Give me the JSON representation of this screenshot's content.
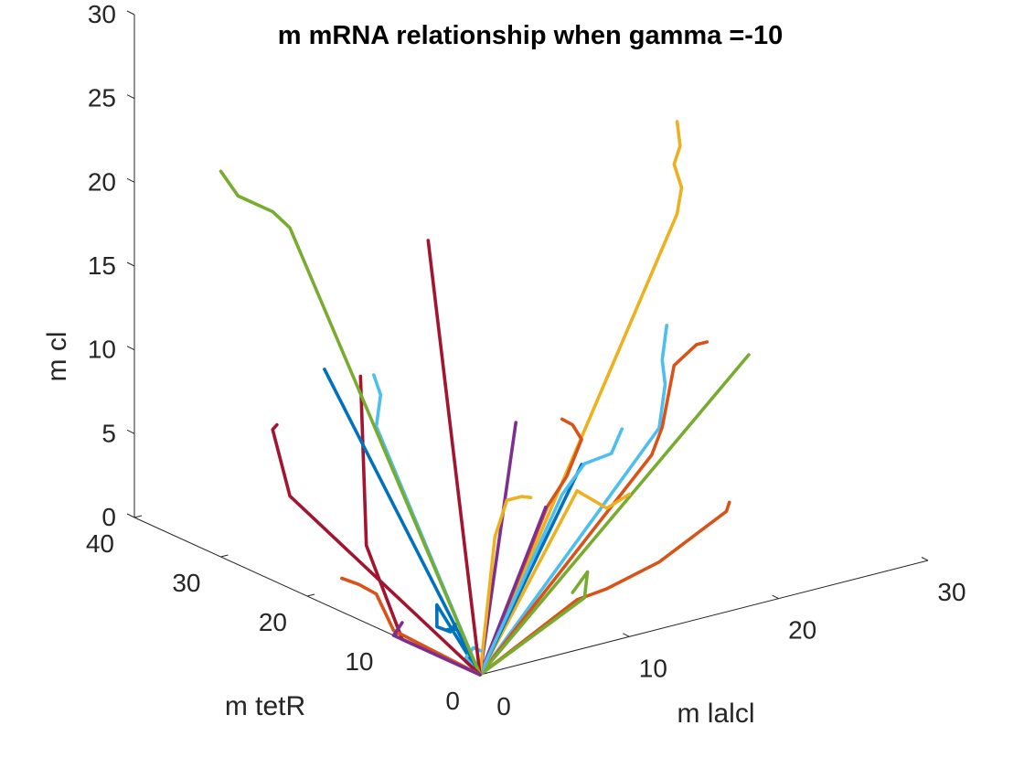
{
  "chart_data": {
    "type": "line",
    "title": "m mRNA relationship when gamma =-10",
    "xlabel": "m lalcl",
    "ylabel": "m tetR",
    "zlabel": "m cl",
    "xlim": [
      0,
      30
    ],
    "ylim": [
      0,
      40
    ],
    "zlim": [
      0,
      30
    ],
    "xticks": [
      "0",
      "10",
      "20",
      "30"
    ],
    "yticks": [
      "0",
      "10",
      "20",
      "30",
      "40"
    ],
    "zticks": [
      "0",
      "5",
      "10",
      "15",
      "20",
      "25",
      "30"
    ],
    "grid": false,
    "colors": [
      "#0072BD",
      "#D95319",
      "#EDB120",
      "#7E2F8E",
      "#77AC30",
      "#4DBEEE",
      "#A2142F"
    ],
    "series": [
      {
        "color": "#EDB120",
        "x": [
          0,
          13.2,
          13.5,
          13.0,
          13.4,
          13.2
        ],
        "y": [
          0,
          0,
          0,
          0,
          0,
          0
        ],
        "z": [
          0,
          24.5,
          26.0,
          27.5,
          28.5,
          30.0
        ]
      },
      {
        "color": "#4DBEEE",
        "x": [
          0,
          12.0,
          12.4,
          12.2,
          12.5
        ],
        "y": [
          0,
          0,
          0,
          0,
          0
        ],
        "z": [
          0,
          12.0,
          14.5,
          16.0,
          18.0
        ]
      },
      {
        "color": "#D95319",
        "x": [
          0,
          11.5,
          12.2,
          13.0,
          14.5,
          15.2
        ],
        "y": [
          0,
          0,
          0,
          0,
          0,
          0
        ],
        "z": [
          0,
          10.5,
          12.0,
          15.5,
          16.4,
          16.4
        ]
      },
      {
        "color": "#77AC30",
        "x": [
          0,
          18.0
        ],
        "y": [
          0,
          0
        ],
        "z": [
          0,
          15.0
        ]
      },
      {
        "color": "#D95319",
        "x": [
          0,
          6.5,
          8.5,
          12.0,
          16.5,
          16.7
        ],
        "y": [
          0,
          0,
          0,
          0,
          0,
          0
        ],
        "z": [
          0,
          3.0,
          3.2,
          4.0,
          6.0,
          6.5
        ]
      },
      {
        "color": "#77AC30",
        "x": [
          0,
          7.0,
          7.2,
          6.2
        ],
        "y": [
          0,
          0,
          0,
          0
        ],
        "z": [
          0,
          3.0,
          4.5,
          3.5
        ]
      },
      {
        "color": "#EDB120",
        "x": [
          0,
          6.5,
          8.5,
          10.0
        ],
        "y": [
          0,
          0,
          0,
          0
        ],
        "z": [
          0,
          9.5,
          8.0,
          8.5
        ]
      },
      {
        "color": "#0072BD",
        "x": [
          0,
          6.8
        ],
        "y": [
          0,
          0
        ],
        "z": [
          0,
          11.0
        ]
      },
      {
        "color": "#D95319",
        "x": [
          0,
          4.5,
          5.8,
          6.8,
          6.2,
          5.5
        ],
        "y": [
          0,
          0,
          0,
          0,
          0,
          0
        ],
        "z": [
          0,
          9.0,
          10.5,
          12.5,
          13.5,
          14.0
        ]
      },
      {
        "color": "#7E2F8E",
        "x": [
          0,
          4.4
        ],
        "y": [
          0,
          0
        ],
        "z": [
          0,
          9.0
        ]
      },
      {
        "color": "#4DBEEE",
        "x": [
          0,
          5.5,
          7.0,
          8.8,
          9.5
        ],
        "y": [
          0,
          0,
          0,
          0,
          0
        ],
        "z": [
          0,
          9.5,
          11.0,
          11.2,
          12.5
        ]
      },
      {
        "color": "#7E2F8E",
        "x": [
          0,
          2.4
        ],
        "y": [
          0,
          0
        ],
        "z": [
          0,
          14.5
        ]
      },
      {
        "color": "#EDB120",
        "x": [
          0,
          1.0,
          1.8,
          2.8,
          3.4
        ],
        "y": [
          0,
          0,
          0,
          0,
          0
        ],
        "z": [
          0,
          8.0,
          10.0,
          10.0,
          9.8
        ]
      },
      {
        "color": "#0072BD",
        "x": [
          0,
          0,
          0.3,
          1.2,
          1.8,
          2.0,
          1.3
        ],
        "y": [
          0,
          5.0,
          5.5,
          5.5,
          6.0,
          6.2,
          6.0
        ],
        "z": [
          0,
          3.0,
          1.5,
          1.0,
          1.2,
          0.8,
          1.0
        ]
      },
      {
        "color": "#4DBEEE",
        "x": [
          0,
          0.5,
          1.0,
          1.5
        ],
        "y": [
          0,
          2.5,
          2.5,
          2.5
        ],
        "z": [
          0,
          0.3,
          0.8,
          0.5
        ]
      },
      {
        "color": "#A2142F",
        "x": [
          0,
          0,
          0,
          0.2,
          0.1
        ],
        "y": [
          0,
          2.0,
          9.0,
          13.5,
          14.0
        ],
        "z": [
          0,
          0,
          0,
          4.5,
          14.5
        ]
      },
      {
        "color": "#A2142F",
        "x": [
          0,
          0
        ],
        "y": [
          0,
          6.0
        ],
        "z": [
          0,
          24.5
        ]
      },
      {
        "color": "#4DBEEE",
        "x": [
          0,
          0,
          0,
          0
        ],
        "y": [
          0,
          12.0,
          11.5,
          12.3
        ],
        "z": [
          0,
          12.0,
          14.0,
          15.0
        ]
      },
      {
        "color": "#0072BD",
        "x": [
          0,
          0
        ],
        "y": [
          0,
          18.0
        ],
        "z": [
          0,
          14.0
        ]
      },
      {
        "color": "#77AC30",
        "x": [
          0,
          0,
          0,
          0,
          0
        ],
        "y": [
          0,
          22.0,
          24.0,
          28.0,
          30.0
        ],
        "z": [
          0,
          21.5,
          22.0,
          22.0,
          23.0
        ]
      },
      {
        "color": "#A2142F",
        "x": [
          0,
          0,
          0,
          0
        ],
        "y": [
          0,
          22.0,
          24.0,
          23.5
        ],
        "z": [
          0,
          5.5,
          9.0,
          9.4
        ]
      },
      {
        "color": "#D95319",
        "x": [
          0,
          0,
          0,
          0,
          0
        ],
        "y": [
          0,
          10.0,
          12.0,
          14.0,
          16.0
        ],
        "z": [
          0,
          0.3,
          2.0,
          2.1,
          2.0
        ]
      },
      {
        "color": "#7E2F8E",
        "x": [
          0,
          0,
          0
        ],
        "y": [
          0,
          10.0,
          9.0
        ],
        "z": [
          0,
          0,
          1.0
        ]
      }
    ]
  }
}
